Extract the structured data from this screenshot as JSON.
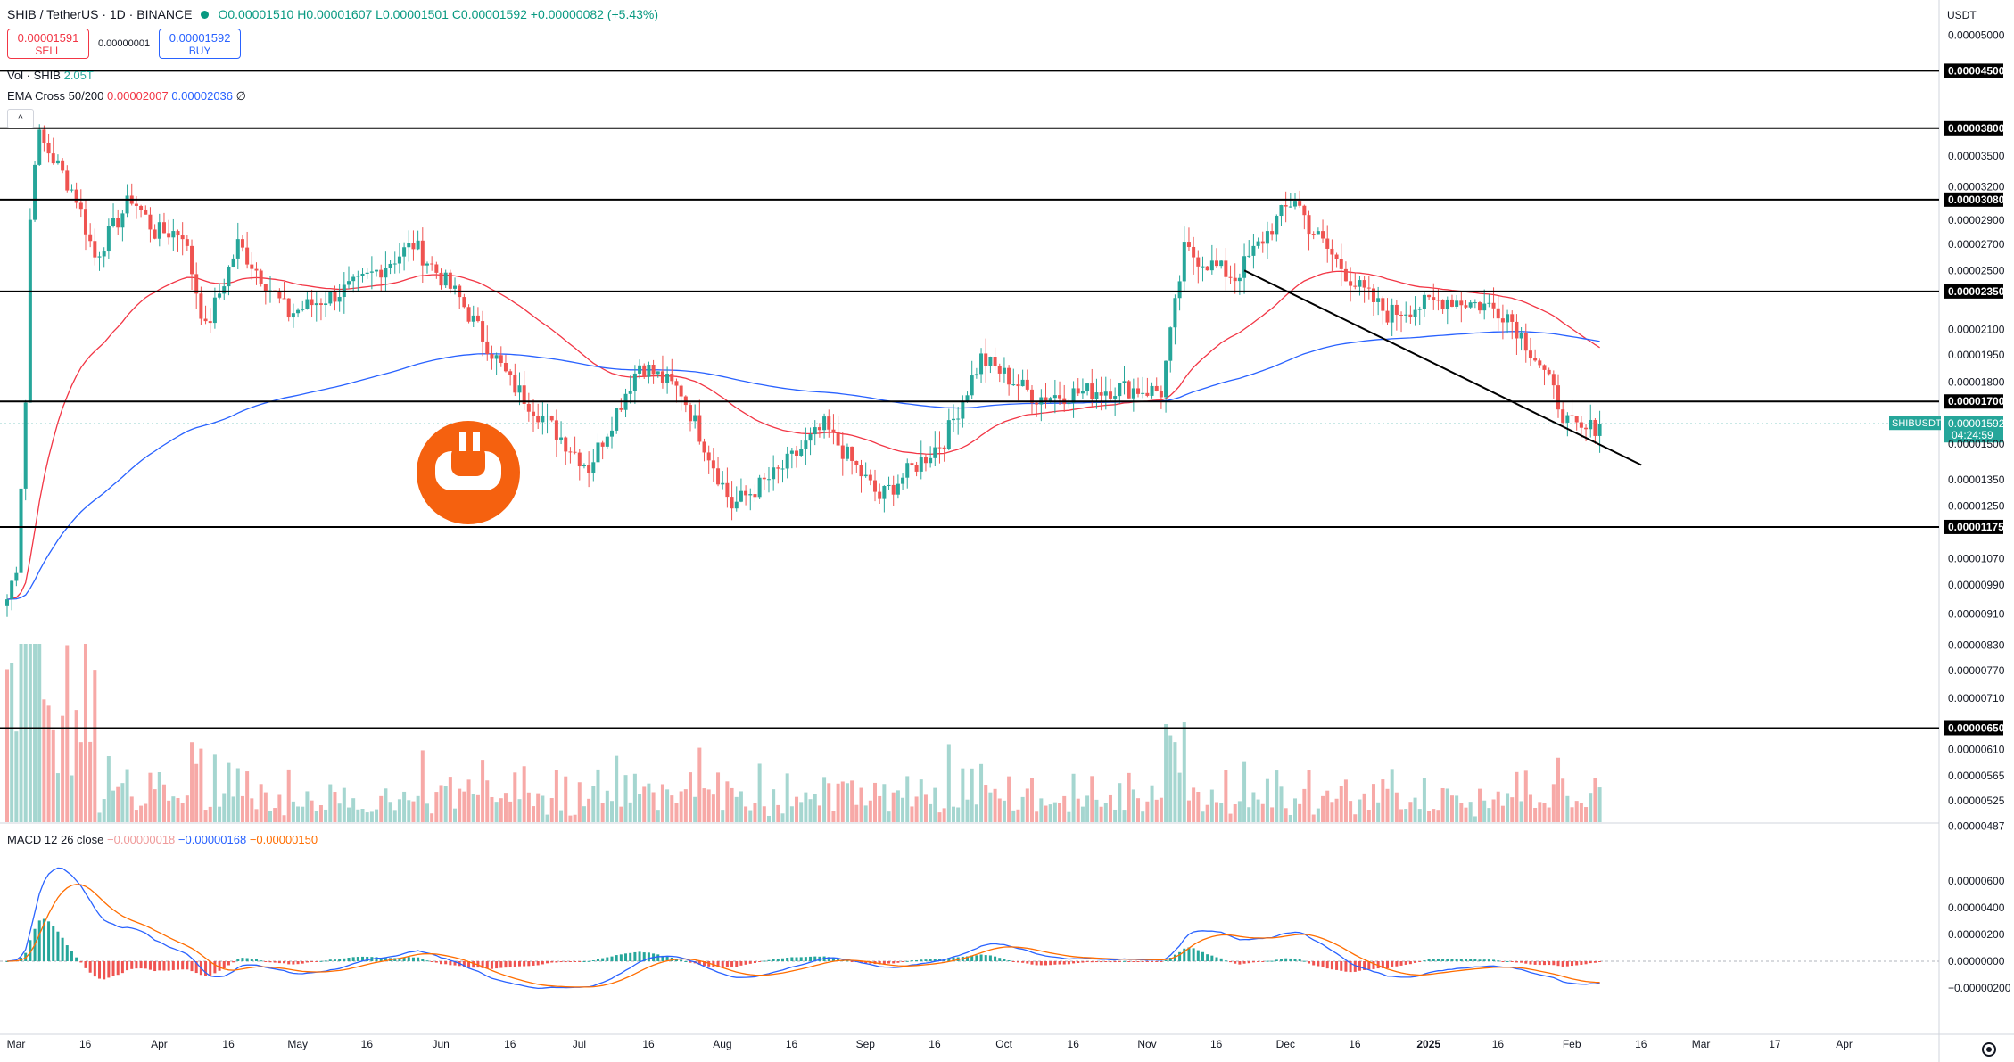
{
  "header": {
    "symbol": "SHIB / TetherUS · 1D · BINANCE",
    "ohlc": "O0.00001510 H0.00001607 L0.00001501 C0.00001592 +0.00000082 (+5.43%)"
  },
  "trade": {
    "sell_price": "0.00001591",
    "sell_label": "SELL",
    "spread": "0.00000001",
    "buy_price": "0.00001592",
    "buy_label": "BUY"
  },
  "legend": {
    "vol_label": "Vol · SHIB",
    "vol_value": "2.05T",
    "ema_label": "EMA Cross 50/200",
    "ema_fast": "0.00002007",
    "ema_slow": "0.00002036",
    "ema_null": "∅",
    "macd_label": "MACD 12 26 close",
    "macd_hist": "−0.00000018",
    "macd_line": "−0.00000168",
    "macd_signal": "−0.00000150"
  },
  "collapse_label": "^",
  "currency": "USDT",
  "price_axis": {
    "ticks": [
      "0.00005000",
      "0.00004500",
      "0.00003800",
      "0.00003500",
      "0.00003200",
      "0.00003080",
      "0.00002900",
      "0.00002700",
      "0.00002500",
      "0.00002350",
      "0.00002100",
      "0.00001950",
      "0.00001800",
      "0.00001700",
      "0.00001592",
      "0.00001500",
      "0.00001350",
      "0.00001250",
      "0.00001175",
      "0.00001070",
      "0.00000990",
      "0.00000910",
      "0.00000830",
      "0.00000770",
      "0.00000710",
      "0.00000650",
      "0.00000610",
      "0.00000565",
      "0.00000525",
      "0.00000487"
    ],
    "levels": [
      "0.00004500",
      "0.00003800",
      "0.00003080",
      "0.00002350",
      "0.00001700",
      "0.00001175",
      "0.00000650"
    ],
    "last": {
      "symbol": "SHIBUSDT",
      "price": "0.00001592",
      "countdown": "04:24:59"
    }
  },
  "macd_axis": {
    "ticks": [
      "0.00000600",
      "0.00000400",
      "0.00000200",
      "0.00000000",
      "−0.00000200"
    ]
  },
  "time_axis": {
    "labels": [
      "Mar",
      "16",
      "Apr",
      "16",
      "May",
      "16",
      "Jun",
      "16",
      "Jul",
      "16",
      "Aug",
      "16",
      "Sep",
      "16",
      "Oct",
      "16",
      "Nov",
      "16",
      "Dec",
      "16",
      "2025",
      "16",
      "Feb",
      "16",
      "Mar",
      "17",
      "Apr"
    ]
  },
  "colors": {
    "up": "#26a69a",
    "down": "#ef5350",
    "ema_fast": "#f23645",
    "ema_slow": "#2962ff",
    "macd_line": "#2962ff",
    "macd_signal": "#ff6d00",
    "level": "#000000",
    "logo": "#f5610f"
  },
  "chart_data": {
    "type": "candlestick",
    "title": "SHIB / TetherUS · 1D · BINANCE",
    "x_range": [
      "2024-03-01",
      "2025-04-15"
    ],
    "y_scale": "log",
    "horizontal_levels": [
      4.5e-05,
      3.8e-05,
      3.08e-05,
      2.35e-05,
      1.7e-05,
      1.175e-05,
      6.5e-06
    ],
    "trendline": [
      {
        "date": "2024-11-24",
        "value": 2.5e-05
      },
      {
        "date": "2025-02-18",
        "value": 1.41e-05
      }
    ],
    "keypoints": [
      {
        "date": "2024-03-01",
        "close": 9.5e-06
      },
      {
        "date": "2024-03-03",
        "close": 1.05e-05
      },
      {
        "date": "2024-03-05",
        "close": 1.7e-05
      },
      {
        "date": "2024-03-06",
        "close": 2.9e-05
      },
      {
        "date": "2024-03-07",
        "close": 3.5e-05
      },
      {
        "date": "2024-03-08",
        "close": 3.7e-05
      },
      {
        "date": "2024-03-12",
        "close": 3.4e-05
      },
      {
        "date": "2024-03-16",
        "close": 3.1e-05
      },
      {
        "date": "2024-03-20",
        "close": 2.6e-05
      },
      {
        "date": "2024-03-28",
        "close": 3.1e-05
      },
      {
        "date": "2024-04-02",
        "close": 2.8e-05
      },
      {
        "date": "2024-04-08",
        "close": 2.8e-05
      },
      {
        "date": "2024-04-13",
        "close": 2.1e-05
      },
      {
        "date": "2024-04-20",
        "close": 2.7e-05
      },
      {
        "date": "2024-05-01",
        "close": 2.2e-05
      },
      {
        "date": "2024-05-16",
        "close": 2.4e-05
      },
      {
        "date": "2024-05-28",
        "close": 2.7e-05
      },
      {
        "date": "2024-06-07",
        "close": 2.3e-05
      },
      {
        "date": "2024-06-18",
        "close": 1.8e-05
      },
      {
        "date": "2024-07-05",
        "close": 1.4e-05
      },
      {
        "date": "2024-07-16",
        "close": 1.9e-05
      },
      {
        "date": "2024-07-25",
        "close": 1.75e-05
      },
      {
        "date": "2024-08-05",
        "close": 1.25e-05
      },
      {
        "date": "2024-08-15",
        "close": 1.38e-05
      },
      {
        "date": "2024-08-25",
        "close": 1.58e-05
      },
      {
        "date": "2024-09-06",
        "close": 1.28e-05
      },
      {
        "date": "2024-09-20",
        "close": 1.52e-05
      },
      {
        "date": "2024-09-28",
        "close": 1.93e-05
      },
      {
        "date": "2024-10-10",
        "close": 1.72e-05
      },
      {
        "date": "2024-10-28",
        "close": 1.77e-05
      },
      {
        "date": "2024-11-06",
        "close": 1.75e-05
      },
      {
        "date": "2024-11-11",
        "close": 2.65e-05
      },
      {
        "date": "2024-11-22",
        "close": 2.45e-05
      },
      {
        "date": "2024-12-01",
        "close": 2.9e-05
      },
      {
        "date": "2024-12-05",
        "close": 3.1e-05
      },
      {
        "date": "2024-12-08",
        "close": 2.85e-05
      },
      {
        "date": "2024-12-18",
        "close": 2.4e-05
      },
      {
        "date": "2024-12-25",
        "close": 2.2e-05
      },
      {
        "date": "2025-01-07",
        "close": 2.3e-05
      },
      {
        "date": "2025-01-16",
        "close": 2.25e-05
      },
      {
        "date": "2025-01-20",
        "close": 2.2e-05
      },
      {
        "date": "2025-01-27",
        "close": 1.9e-05
      },
      {
        "date": "2025-02-02",
        "close": 1.6e-05
      },
      {
        "date": "2025-02-05",
        "close": 1.55e-05
      },
      {
        "date": "2025-02-09",
        "close": 1.592e-05
      }
    ]
  }
}
